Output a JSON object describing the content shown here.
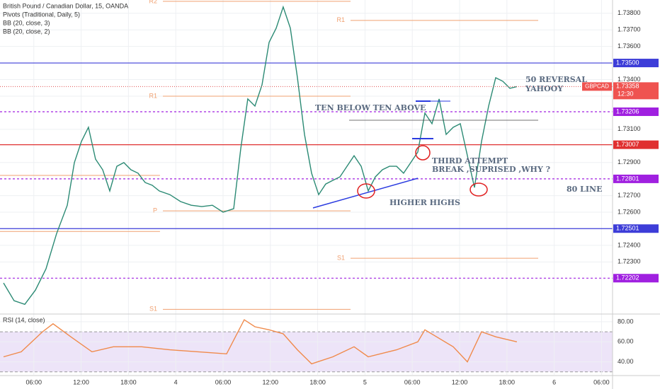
{
  "chart_data": [
    {
      "type": "line",
      "title": "British Pound / Canadian Dollar, 15, OANDA",
      "indicators": [
        "Pivots (Traditional, Daily, 5)",
        "BB (20, close, 3)",
        "BB (20, close, 2)"
      ],
      "symbol": "GBPCAD",
      "last_time": "12:30",
      "x": [
        2.16,
        3.5,
        4.85,
        6.2,
        7.54,
        8.89,
        10.24,
        11.14,
        12.04,
        12.93,
        13.83,
        14.73,
        15.63,
        16.53,
        17.42,
        18.32,
        19.22,
        20.12,
        21.02,
        21.92,
        23.26,
        24.61,
        25.96,
        27.31,
        28.65,
        30.0,
        31.35,
        32.25,
        33.14,
        34.04,
        34.94,
        35.84,
        36.74,
        37.63,
        38.53,
        39.43,
        40.33,
        41.23,
        42.13,
        43.02,
        43.92,
        44.82,
        45.72,
        46.62,
        47.52,
        48.41,
        49.31,
        50.21,
        51.11,
        52.01,
        52.9,
        53.8,
        54.7,
        55.6,
        56.5,
        57.4,
        58.29,
        59.19,
        60.09,
        60.99,
        61.89,
        62.78,
        63.68,
        64.58,
        65.48,
        66.38,
        67.27
      ],
      "series": [
        {
          "name": "GBPCAD",
          "color": "#2b8a74",
          "values": [
            1.72173,
            1.72066,
            1.72044,
            1.7213,
            1.72258,
            1.72471,
            1.72642,
            1.72899,
            1.73027,
            1.73112,
            1.7292,
            1.72856,
            1.72728,
            1.72877,
            1.72899,
            1.72856,
            1.72835,
            1.72779,
            1.72762,
            1.72728,
            1.72706,
            1.72664,
            1.72642,
            1.72634,
            1.72642,
            1.726,
            1.72621,
            1.72984,
            1.73283,
            1.7324,
            1.73368,
            1.73625,
            1.7371,
            1.73838,
            1.7371,
            1.73411,
            1.73069,
            1.72835,
            1.72706,
            1.7277,
            1.72792,
            1.72813,
            1.72877,
            1.72941,
            1.72877,
            1.72728,
            1.72813,
            1.72856,
            1.72877,
            1.72877,
            1.72835,
            1.72899,
            1.72963,
            1.73198,
            1.73134,
            1.73283,
            1.73069,
            1.73112,
            1.73134,
            1.72941,
            1.72749,
            1.73027,
            1.7324,
            1.73411,
            1.7339,
            1.73347,
            1.73358
          ]
        }
      ],
      "xlim": [
        1.71,
        79.4
      ],
      "ylim": [
        1.7199,
        1.7388
      ],
      "yticks": [
        {
          "value": 1.738,
          "label": "1.73800"
        },
        {
          "value": 1.737,
          "label": "1.73700"
        },
        {
          "value": 1.736,
          "label": "1.73600"
        },
        {
          "value": 1.734,
          "label": "1.73400"
        },
        {
          "value": 1.733,
          "label": "1.73300"
        },
        {
          "value": 1.731,
          "label": "1.73100"
        },
        {
          "value": 1.729,
          "label": "1.72900"
        },
        {
          "value": 1.727,
          "label": "1.72700"
        },
        {
          "value": 1.726,
          "label": "1.72600"
        },
        {
          "value": 1.724,
          "label": "1.72400"
        },
        {
          "value": 1.723,
          "label": "1.72300"
        }
      ],
      "grid": true,
      "levels": [
        {
          "value": 1.735,
          "label": "1.73500",
          "color": "#3d3dd8",
          "style": "solid"
        },
        {
          "value": 1.73206,
          "label": "1.73206",
          "color": "#a020e0",
          "style": "dashed"
        },
        {
          "value": 1.73007,
          "label": "1.73007",
          "color": "#e03030",
          "style": "solid"
        },
        {
          "value": 1.72801,
          "label": "1.72801",
          "color": "#a020e0",
          "style": "dashed"
        },
        {
          "value": 1.72501,
          "label": "1.72501",
          "color": "#3d3dd8",
          "style": "solid"
        },
        {
          "value": 1.72202,
          "label": "1.72202",
          "color": "#a020e0",
          "style": "dashed"
        }
      ],
      "pivots": [
        {
          "label": null,
          "value": 1.72822,
          "x": [
            1.71,
            22.0
          ]
        },
        {
          "label": null,
          "value": 1.72484,
          "x": [
            1.71,
            22.0
          ]
        },
        {
          "label": "R2",
          "value": 1.73872,
          "x": [
            22.37,
            46.17
          ]
        },
        {
          "label": "R1",
          "value": 1.733,
          "x": [
            22.37,
            46.17
          ]
        },
        {
          "label": "P",
          "value": 1.72608,
          "x": [
            22.37,
            46.17
          ]
        },
        {
          "label": "S1",
          "value": 1.72014,
          "x": [
            22.37,
            46.17
          ]
        },
        {
          "label": "R1",
          "value": 1.73757,
          "x": [
            46.17,
            69.97
          ]
        },
        {
          "label": "S1",
          "value": 1.72322,
          "x": [
            46.17,
            69.97
          ]
        }
      ],
      "pivot_color": "#f0a070",
      "annotations": [
        "TEN BELOW TEN ABOVE",
        "THIRD ATTEMPT",
        "BREAK ,SUPRISED ,WHY ?",
        "HIGHER HIGHS",
        "50 REVERSAL",
        "YAHOOY",
        "80 LINE"
      ]
    },
    {
      "type": "line",
      "title": "RSI (14, close)",
      "x": [
        2.16,
        4.4,
        7.1,
        8.44,
        10.69,
        13.38,
        16.08,
        19.67,
        23.26,
        26.86,
        30.45,
        32.69,
        34.04,
        35.84,
        37.63,
        39.43,
        41.23,
        43.92,
        46.62,
        48.41,
        52.01,
        54.7,
        55.6,
        59.19,
        60.99,
        62.78,
        64.58,
        67.27
      ],
      "values": [
        45,
        50,
        70,
        78,
        65,
        50,
        55,
        55,
        52,
        50,
        48,
        82,
        75,
        72,
        68,
        52,
        38,
        45,
        55,
        45,
        52,
        60,
        72,
        55,
        40,
        70,
        65,
        60
      ],
      "color": "#f08a4b",
      "xlim": [
        1.71,
        79.4
      ],
      "ylim": [
        27,
        87
      ],
      "yticks": [
        {
          "value": 80,
          "label": "80.00"
        },
        {
          "value": 60,
          "label": "60.00"
        },
        {
          "value": 40,
          "label": "40.00"
        }
      ],
      "band": [
        30,
        70
      ],
      "band_color": "#e6d8f5",
      "xticks": [
        {
          "value": 6,
          "label": "06:00"
        },
        {
          "value": 12,
          "label": "12:00"
        },
        {
          "value": 18,
          "label": "18:00"
        },
        {
          "value": 24,
          "label": "4"
        },
        {
          "value": 30,
          "label": "06:00"
        },
        {
          "value": 36,
          "label": "12:00"
        },
        {
          "value": 42,
          "label": "18:00"
        },
        {
          "value": 48,
          "label": "5"
        },
        {
          "value": 54,
          "label": "06:00"
        },
        {
          "value": 60,
          "label": "12:00"
        },
        {
          "value": 66,
          "label": "18:00"
        },
        {
          "value": 72,
          "label": "6"
        },
        {
          "value": 78,
          "label": "06:00"
        }
      ]
    }
  ]
}
